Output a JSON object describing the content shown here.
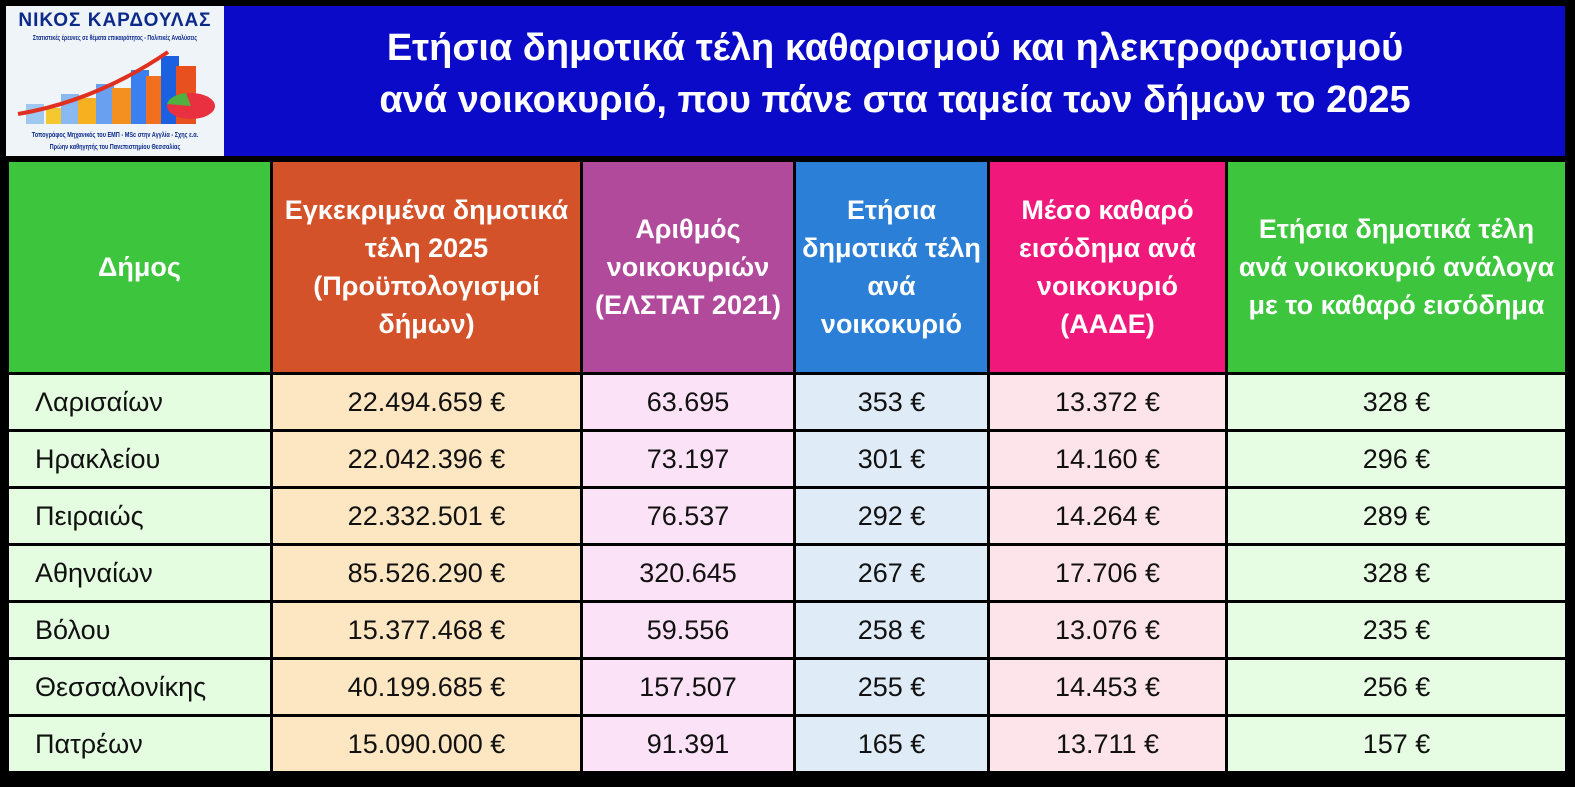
{
  "logo": {
    "name": "ΝΙΚΟΣ ΚΑΡΔΟΥΛΑΣ",
    "subtitle": "Στατιστικές έρευνες σε θέματα επικαιρότητος - Πολιτικές Αναλύσεις",
    "line1": "Τοπογράφος Μηχανικός του ΕΜΠ - MSc στην Αγγλία - Σχης ε.α.",
    "line2": "Πρώην καθηγητής του Πανεπιστημίου Θεσσαλίας"
  },
  "title": {
    "line1": "Ετήσια δημοτικά τέλη καθαρισμού και ηλεκτροφωτισμού",
    "line2": "ανά νοικοκυριό, που πάνε στα ταμεία των δήμων το 2025"
  },
  "colors": {
    "title_band": "#0a0ac8",
    "header": [
      "#3dc63d",
      "#d4522a",
      "#b24a9c",
      "#2b7fd6",
      "#f0187a",
      "#3dc63d"
    ]
  },
  "table": {
    "headers": [
      "Δήμος",
      "Εγκεκριμένα δημοτικά τέλη 2025 (Προϋπολογισμοί δήμων)",
      "Αριθμός νοικοκυριών (ΕΛΣΤΑΤ 2021)",
      "Ετήσια δημοτικά τέλη ανά νοικοκυριό",
      "Μέσο καθαρό εισόδημα ανά νοικοκυριό (ΑΑΔΕ)",
      "Ετήσια δημοτικά τέλη ανά νοικοκυριό ανάλογα με το καθαρό εισόδημα"
    ],
    "rows": [
      [
        "Λαρισαίων",
        "22.494.659 €",
        "63.695",
        "353 €",
        "13.372 €",
        "328 €"
      ],
      [
        "Ηρακλείου",
        "22.042.396 €",
        "73.197",
        "301 €",
        "14.160 €",
        "296 €"
      ],
      [
        "Πειραιώς",
        "22.332.501 €",
        "76.537",
        "292 €",
        "14.264 €",
        "289 €"
      ],
      [
        "Αθηναίων",
        "85.526.290 €",
        "320.645",
        "267 €",
        "17.706 €",
        "328 €"
      ],
      [
        "Βόλου",
        "15.377.468 €",
        "59.556",
        "258 €",
        "13.076 €",
        "235 €"
      ],
      [
        "Θεσσαλονίκης",
        "40.199.685 €",
        "157.507",
        "255 €",
        "14.453 €",
        "256 €"
      ],
      [
        "Πατρέων",
        "15.090.000 €",
        "91.391",
        "165 €",
        "13.711 €",
        "157 €"
      ]
    ]
  }
}
